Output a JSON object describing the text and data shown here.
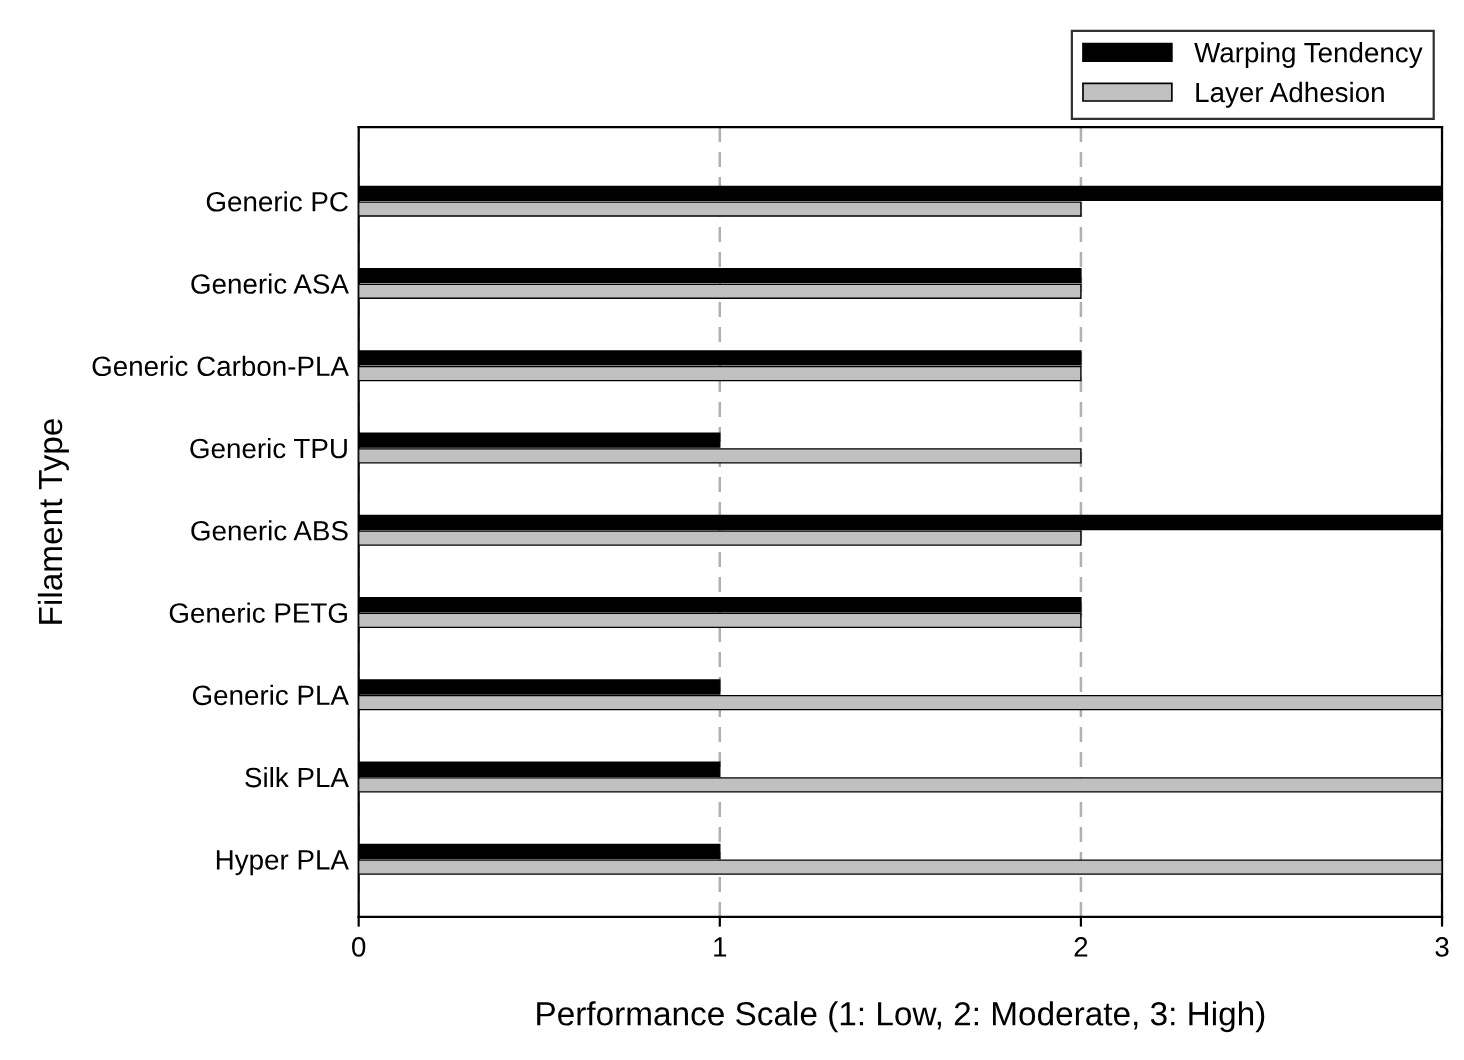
{
  "chart_data": {
    "type": "bar",
    "orientation": "horizontal",
    "xlabel": "Performance Scale (1: Low, 2: Moderate, 3: High)",
    "ylabel": "Filament Type",
    "categories": [
      "Generic PC",
      "Generic ASA",
      "Generic Carbon-PLA",
      "Generic TPU",
      "Generic ABS",
      "Generic PETG",
      "Generic PLA",
      "Silk PLA",
      "Hyper PLA"
    ],
    "series": [
      {
        "name": "Layer Adhesion",
        "color": "#c0c0c0",
        "values": [
          2,
          2,
          2,
          2,
          2,
          2,
          3,
          3,
          3
        ]
      },
      {
        "name": "Warping Tendency",
        "color": "#000000",
        "values": [
          3,
          2,
          2,
          1,
          3,
          2,
          1,
          1,
          1
        ]
      }
    ],
    "xlim": [
      0,
      3
    ],
    "xticks": [
      0,
      1,
      2,
      3
    ],
    "grid": "x",
    "legend": "top right"
  }
}
